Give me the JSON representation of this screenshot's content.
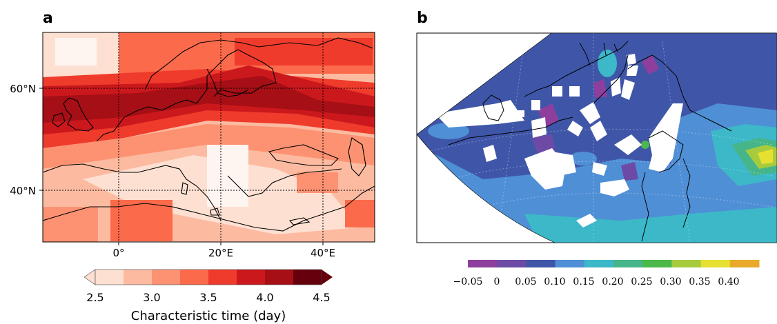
{
  "panels": {
    "a": {
      "letter": "a",
      "lat_labels": [
        "60°N",
        "40°N"
      ],
      "lon_labels": [
        "0°",
        "20°E",
        "40°E"
      ],
      "colorbar": {
        "ticks": [
          "2.5",
          "3.0",
          "3.5",
          "4.0",
          "4.5"
        ],
        "label": "Characteristic time (day)",
        "colors": [
          "#fde0d2",
          "#fcbba1",
          "#fc9272",
          "#fb6a4a",
          "#ef3b2c",
          "#cb181d",
          "#a50f15",
          "#67000d"
        ]
      }
    },
    "b": {
      "letter": "b",
      "colorbar": {
        "ticks": [
          "−0.05",
          "0",
          "0.05",
          "0.10",
          "0.15",
          "0.20",
          "0.25",
          "0.30",
          "0.35",
          "0.40"
        ],
        "colors": [
          "#8e3f9e",
          "#6c4aa6",
          "#3f56a8",
          "#4f8fd6",
          "#3cb8c8",
          "#46b58a",
          "#4db84a",
          "#a6cc3e",
          "#e6e030",
          "#e9a92a"
        ]
      }
    }
  }
}
